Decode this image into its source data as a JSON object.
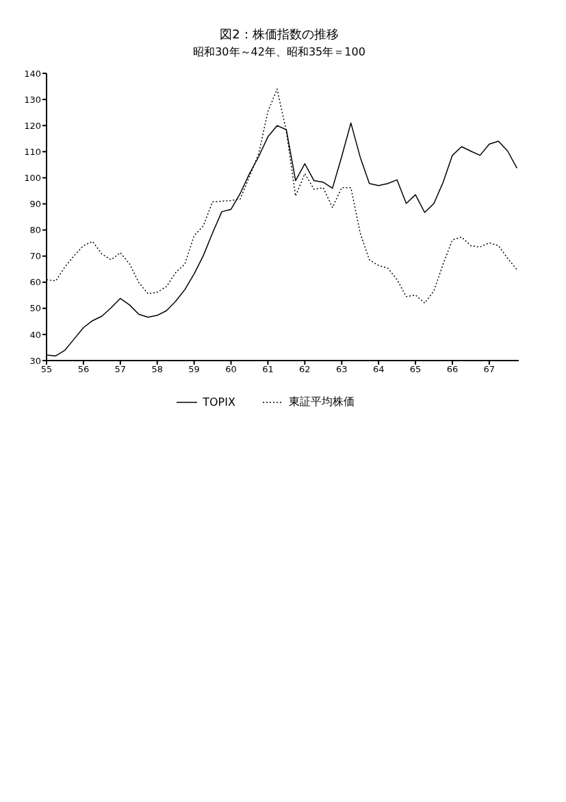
{
  "chart_data": {
    "type": "line",
    "title": "図2：株価指数の推移",
    "subtitle": "昭和30年～42年、昭和35年＝100",
    "x": [
      55,
      55.25,
      55.5,
      55.75,
      56,
      56.25,
      56.5,
      56.75,
      57,
      57.25,
      57.5,
      57.75,
      58,
      58.25,
      58.5,
      58.75,
      59,
      59.25,
      59.5,
      59.75,
      60,
      60.25,
      60.5,
      60.75,
      61,
      61.25,
      61.5,
      61.75,
      62,
      62.25,
      62.5,
      62.75,
      63,
      63.25,
      63.5,
      63.75,
      64,
      64.25,
      64.5,
      64.75,
      65,
      65.25,
      65.5,
      65.75,
      66,
      66.25,
      66.5,
      66.75,
      67,
      67.25,
      67.5,
      67.75
    ],
    "series": [
      {
        "name": "TOPIX",
        "color": "#000000",
        "line_style": "solid",
        "values": [
          32.1,
          31.8,
          34,
          38.3,
          42.6,
          45.3,
          47,
          50.2,
          53.8,
          51.3,
          47.7,
          46.6,
          47.3,
          49.1,
          52.7,
          57.2,
          63.2,
          70.2,
          78.9,
          87,
          87.9,
          94,
          101.6,
          108.1,
          115.7,
          120,
          118.4,
          98.9,
          105.4,
          98.9,
          98.3,
          96,
          108.1,
          121,
          108,
          97.8,
          97,
          97.8,
          99.2,
          90.2,
          93.5,
          86.7,
          90.2,
          98.3,
          108.6,
          111.9,
          110.2,
          108.6,
          112.9,
          114,
          110.2,
          103.7
        ]
      },
      {
        "name": "東証平均株価",
        "color": "#000000",
        "line_style": "dotted",
        "values": [
          61,
          60.5,
          65.9,
          70.2,
          74,
          75.6,
          70.8,
          68.6,
          71.3,
          67,
          59.9,
          55.6,
          56.2,
          58.3,
          63.7,
          67,
          77.8,
          81.6,
          90.8,
          91,
          91.3,
          91.9,
          100.5,
          109.2,
          125.4,
          134,
          117.8,
          93,
          101.6,
          95.6,
          96.2,
          88.6,
          96.2,
          96.2,
          78.9,
          68.6,
          66.4,
          65.4,
          61,
          54.5,
          55.1,
          52,
          56.7,
          67,
          76.2,
          77.3,
          74,
          73.5,
          75.1,
          74,
          69.1,
          64.8
        ]
      }
    ],
    "xlim": [
      55,
      67.8
    ],
    "xticks": [
      55,
      56,
      57,
      58,
      59,
      60,
      61,
      62,
      63,
      64,
      65,
      66,
      67
    ],
    "ylim": [
      30,
      140
    ],
    "yticks": [
      30,
      40,
      50,
      60,
      70,
      80,
      90,
      100,
      110,
      120,
      130,
      140
    ],
    "grid": false,
    "legend": "bottom",
    "marker": "none"
  }
}
